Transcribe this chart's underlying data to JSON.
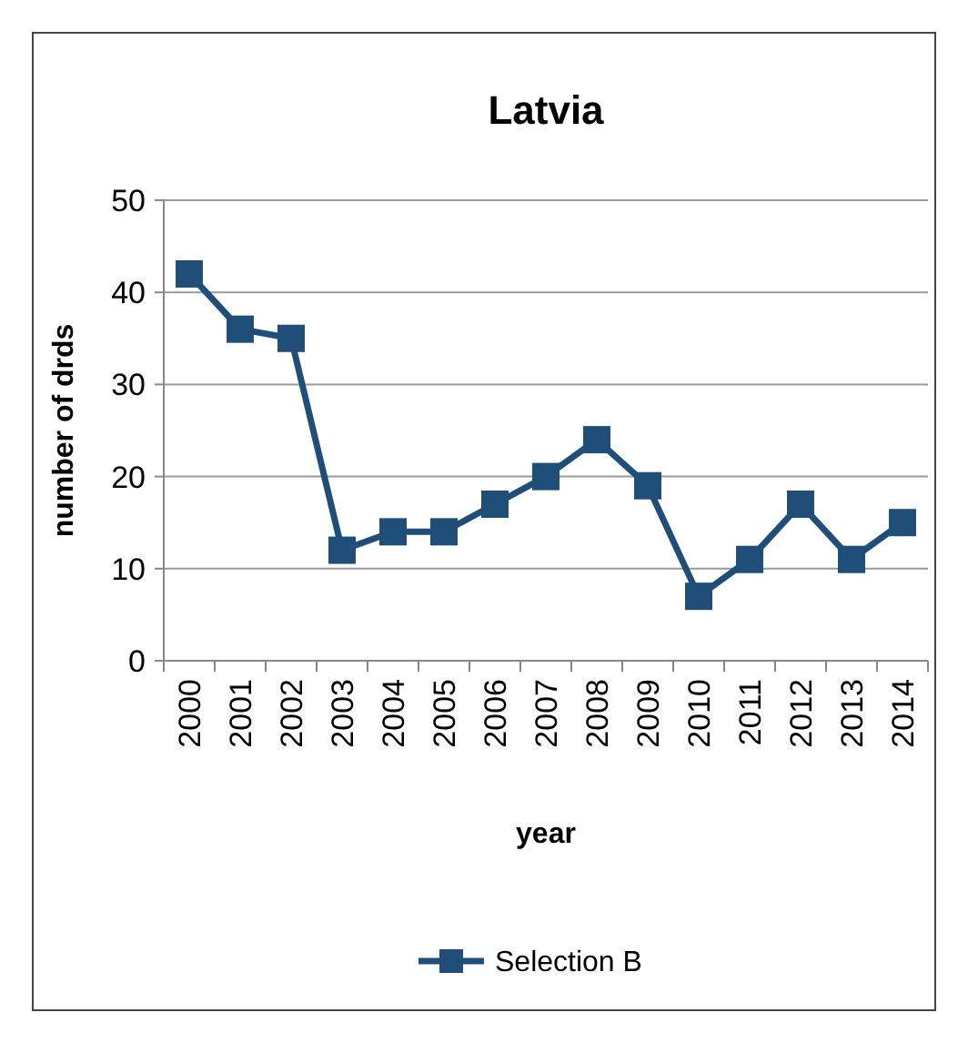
{
  "chart_data": {
    "type": "line",
    "title": "Latvia",
    "xlabel": "year",
    "ylabel": "number of drds",
    "categories": [
      "2000",
      "2001",
      "2002",
      "2003",
      "2004",
      "2005",
      "2006",
      "2007",
      "2008",
      "2009",
      "2010",
      "2011",
      "2012",
      "2013",
      "2014"
    ],
    "series": [
      {
        "name": "Selection B",
        "color": "#1f4e79",
        "values": [
          42,
          36,
          35,
          12,
          14,
          14,
          17,
          20,
          24,
          19,
          7,
          11,
          17,
          11,
          15
        ]
      }
    ],
    "ylim": [
      0,
      50
    ],
    "yticks": [
      0,
      10,
      20,
      30,
      40,
      50
    ],
    "grid": "y",
    "legend": "bottom",
    "marker": "square",
    "line_style": "solid"
  }
}
